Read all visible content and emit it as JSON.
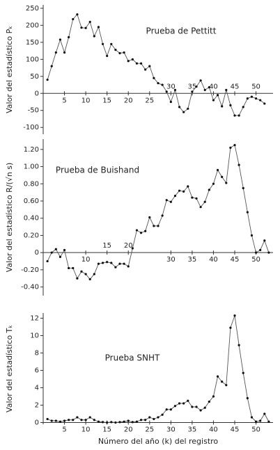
{
  "chart_data": [
    {
      "type": "line",
      "annotation": "Prueba de Pettitt",
      "ylabel": "Valor del estadístico Pₖ",
      "x": [
        1,
        2,
        3,
        4,
        5,
        6,
        7,
        8,
        9,
        10,
        11,
        12,
        13,
        14,
        15,
        16,
        17,
        18,
        19,
        20,
        21,
        22,
        23,
        24,
        25,
        26,
        27,
        28,
        29,
        30,
        31,
        32,
        33,
        34,
        35,
        36,
        37,
        38,
        39,
        40,
        41,
        42,
        43,
        44,
        45,
        46,
        47,
        48,
        49,
        50,
        51,
        52
      ],
      "series": [
        {
          "color": "#555555",
          "values": [
            40,
            80,
            120,
            158,
            120,
            165,
            218,
            232,
            193,
            192,
            210,
            168,
            195,
            145,
            110,
            145,
            128,
            118,
            120,
            95,
            100,
            88,
            88,
            70,
            80,
            45,
            30,
            25,
            5,
            -25,
            10,
            -40,
            -55,
            -45,
            5,
            20,
            38,
            10,
            18,
            -20,
            -5,
            -38,
            10,
            -35,
            -65,
            -65,
            -40,
            -15,
            -10,
            -15,
            -20,
            -30
          ]
        }
      ],
      "xlim": [
        0,
        54
      ],
      "ylim": [
        -120,
        260
      ],
      "xticks": [
        5,
        10,
        15,
        20,
        25,
        30,
        35,
        40,
        45,
        50
      ],
      "yticks": [
        -100,
        -50,
        0,
        50,
        100,
        150,
        200,
        250
      ]
    },
    {
      "type": "line",
      "annotation": "Prueba de Buishand",
      "ylabel": "Valor del estadístico R/(√n s)",
      "x": [
        1,
        2,
        3,
        4,
        5,
        6,
        7,
        8,
        9,
        10,
        11,
        12,
        13,
        14,
        15,
        16,
        17,
        18,
        19,
        20,
        21,
        22,
        23,
        24,
        25,
        26,
        27,
        28,
        29,
        30,
        31,
        32,
        33,
        34,
        35,
        36,
        37,
        38,
        39,
        40,
        41,
        42,
        43,
        44,
        45,
        46,
        47,
        48,
        49,
        50,
        51,
        52,
        53
      ],
      "series": [
        {
          "color": "#555555",
          "values": [
            -0.1,
            0.0,
            0.04,
            -0.05,
            0.03,
            -0.18,
            -0.18,
            -0.3,
            -0.22,
            -0.25,
            -0.31,
            -0.25,
            -0.13,
            -0.12,
            -0.11,
            -0.12,
            -0.17,
            -0.13,
            -0.13,
            -0.16,
            0.05,
            0.26,
            0.23,
            0.25,
            0.41,
            0.31,
            0.31,
            0.43,
            0.61,
            0.59,
            0.66,
            0.72,
            0.71,
            0.77,
            0.64,
            0.63,
            0.53,
            0.59,
            0.73,
            0.8,
            0.96,
            0.88,
            0.81,
            1.22,
            1.25,
            1.02,
            0.75,
            0.47,
            0.2,
            0.0,
            0.03,
            0.14,
            0.0
          ]
        }
      ],
      "xlim": [
        0,
        54
      ],
      "ylim": [
        -0.5,
        1.32
      ],
      "xticks": [
        10,
        15,
        20,
        30,
        35,
        40,
        45,
        50
      ],
      "yticks": [
        {
          "value": -0.4,
          "label": "-0.40"
        },
        {
          "value": -0.2,
          "label": "-0.20"
        },
        0,
        {
          "value": 0.2,
          "label": "0.20"
        },
        {
          "value": 0.4,
          "label": "0.40"
        },
        {
          "value": 0.6,
          "label": "0.60"
        },
        {
          "value": 0.8,
          "label": "0.80"
        },
        {
          "value": 1.0,
          "label": "1.00"
        },
        {
          "value": 1.2,
          "label": "1.20"
        }
      ]
    },
    {
      "type": "line",
      "annotation": "Prueba SNHT",
      "ylabel": "Valor del estadístico Tₖ",
      "xlabel": "Número del año (k) del registro",
      "x": [
        1,
        2,
        3,
        4,
        5,
        6,
        7,
        8,
        9,
        10,
        11,
        12,
        13,
        14,
        15,
        16,
        17,
        18,
        19,
        20,
        21,
        22,
        23,
        24,
        25,
        26,
        27,
        28,
        29,
        30,
        31,
        32,
        33,
        34,
        35,
        36,
        37,
        38,
        39,
        40,
        41,
        42,
        43,
        44,
        45,
        46,
        47,
        48,
        49,
        50,
        51,
        52,
        53
      ],
      "series": [
        {
          "color": "#555555",
          "values": [
            0.4,
            0.2,
            0.2,
            0.1,
            0.2,
            0.3,
            0.3,
            0.6,
            0.3,
            0.3,
            0.6,
            0.3,
            0.1,
            0.05,
            0.0,
            0.05,
            0.0,
            0.05,
            0.1,
            0.2,
            0.05,
            0.1,
            0.3,
            0.3,
            0.6,
            0.4,
            0.6,
            0.9,
            1.5,
            1.5,
            1.9,
            2.2,
            2.2,
            2.5,
            1.8,
            1.8,
            1.4,
            1.7,
            2.4,
            3.0,
            5.3,
            4.7,
            4.3,
            10.9,
            12.3,
            8.9,
            5.7,
            2.8,
            0.6,
            0.1,
            0.2,
            1.0,
            0.1
          ]
        }
      ],
      "xlim": [
        0,
        54
      ],
      "ylim": [
        -0.2,
        12.6
      ],
      "xticks": [
        5,
        10,
        15,
        20,
        25,
        30,
        35,
        40,
        45,
        50
      ],
      "yticks": [
        0,
        2,
        4,
        6,
        8,
        10,
        12
      ]
    }
  ]
}
